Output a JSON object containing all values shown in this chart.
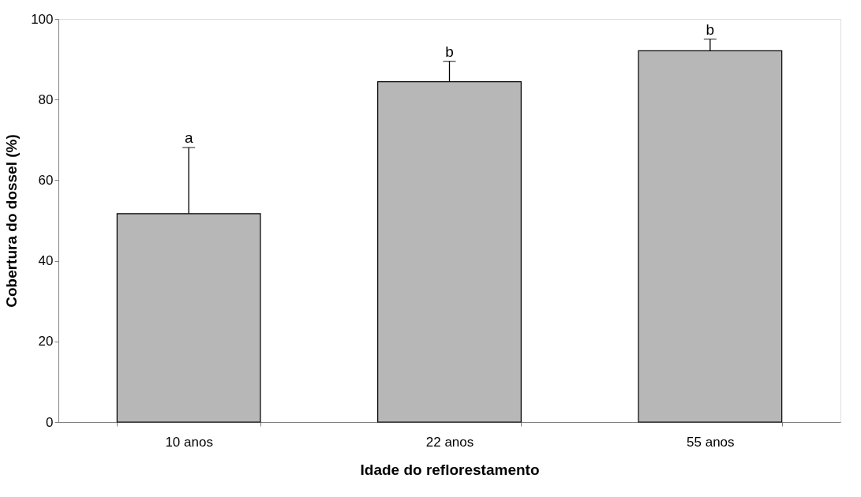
{
  "chart_data": {
    "type": "bar",
    "xlabel": "Idade do reflorestamento",
    "ylabel": "Cobertura do dossel (%)",
    "categories": [
      "10 anos",
      "22 anos",
      "55 anos"
    ],
    "values": [
      51.7,
      84.4,
      92.1
    ],
    "color": "#b7b7b7",
    "errors": [
      [
        51.7,
        68.1
      ],
      [
        84.4,
        89.5
      ],
      [
        92.1,
        95.0
      ]
    ],
    "annotations": [
      {
        "text": "a",
        "x": "10 anos",
        "y": 68.1
      },
      {
        "text": "b",
        "x": "22 anos",
        "y": 89.5
      },
      {
        "text": "b",
        "x": "55 anos",
        "y": 95.0
      }
    ],
    "ylim": [
      0,
      100
    ],
    "yticks": [
      0,
      20,
      40,
      60,
      80,
      100
    ],
    "grid": false
  }
}
